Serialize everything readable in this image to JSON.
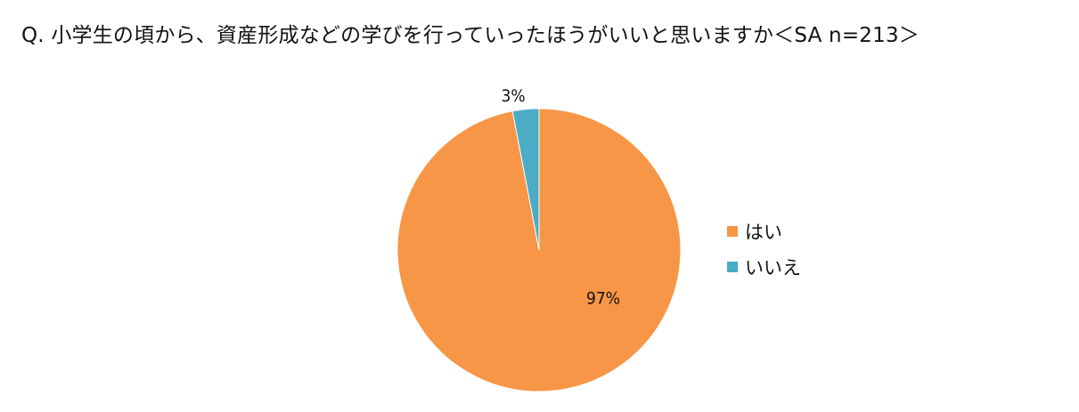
{
  "chart_data": {
    "type": "pie",
    "title": "Q. 小学生の頃から、資産形成などの学びを行っていったほうがいいと思いますか＜SA n=213＞",
    "categories": [
      "はい",
      "いいえ"
    ],
    "values": [
      97,
      3
    ],
    "data_labels": [
      "97%",
      "3%"
    ],
    "colors": [
      "#F79646",
      "#4BACC6"
    ],
    "legend": "right"
  }
}
